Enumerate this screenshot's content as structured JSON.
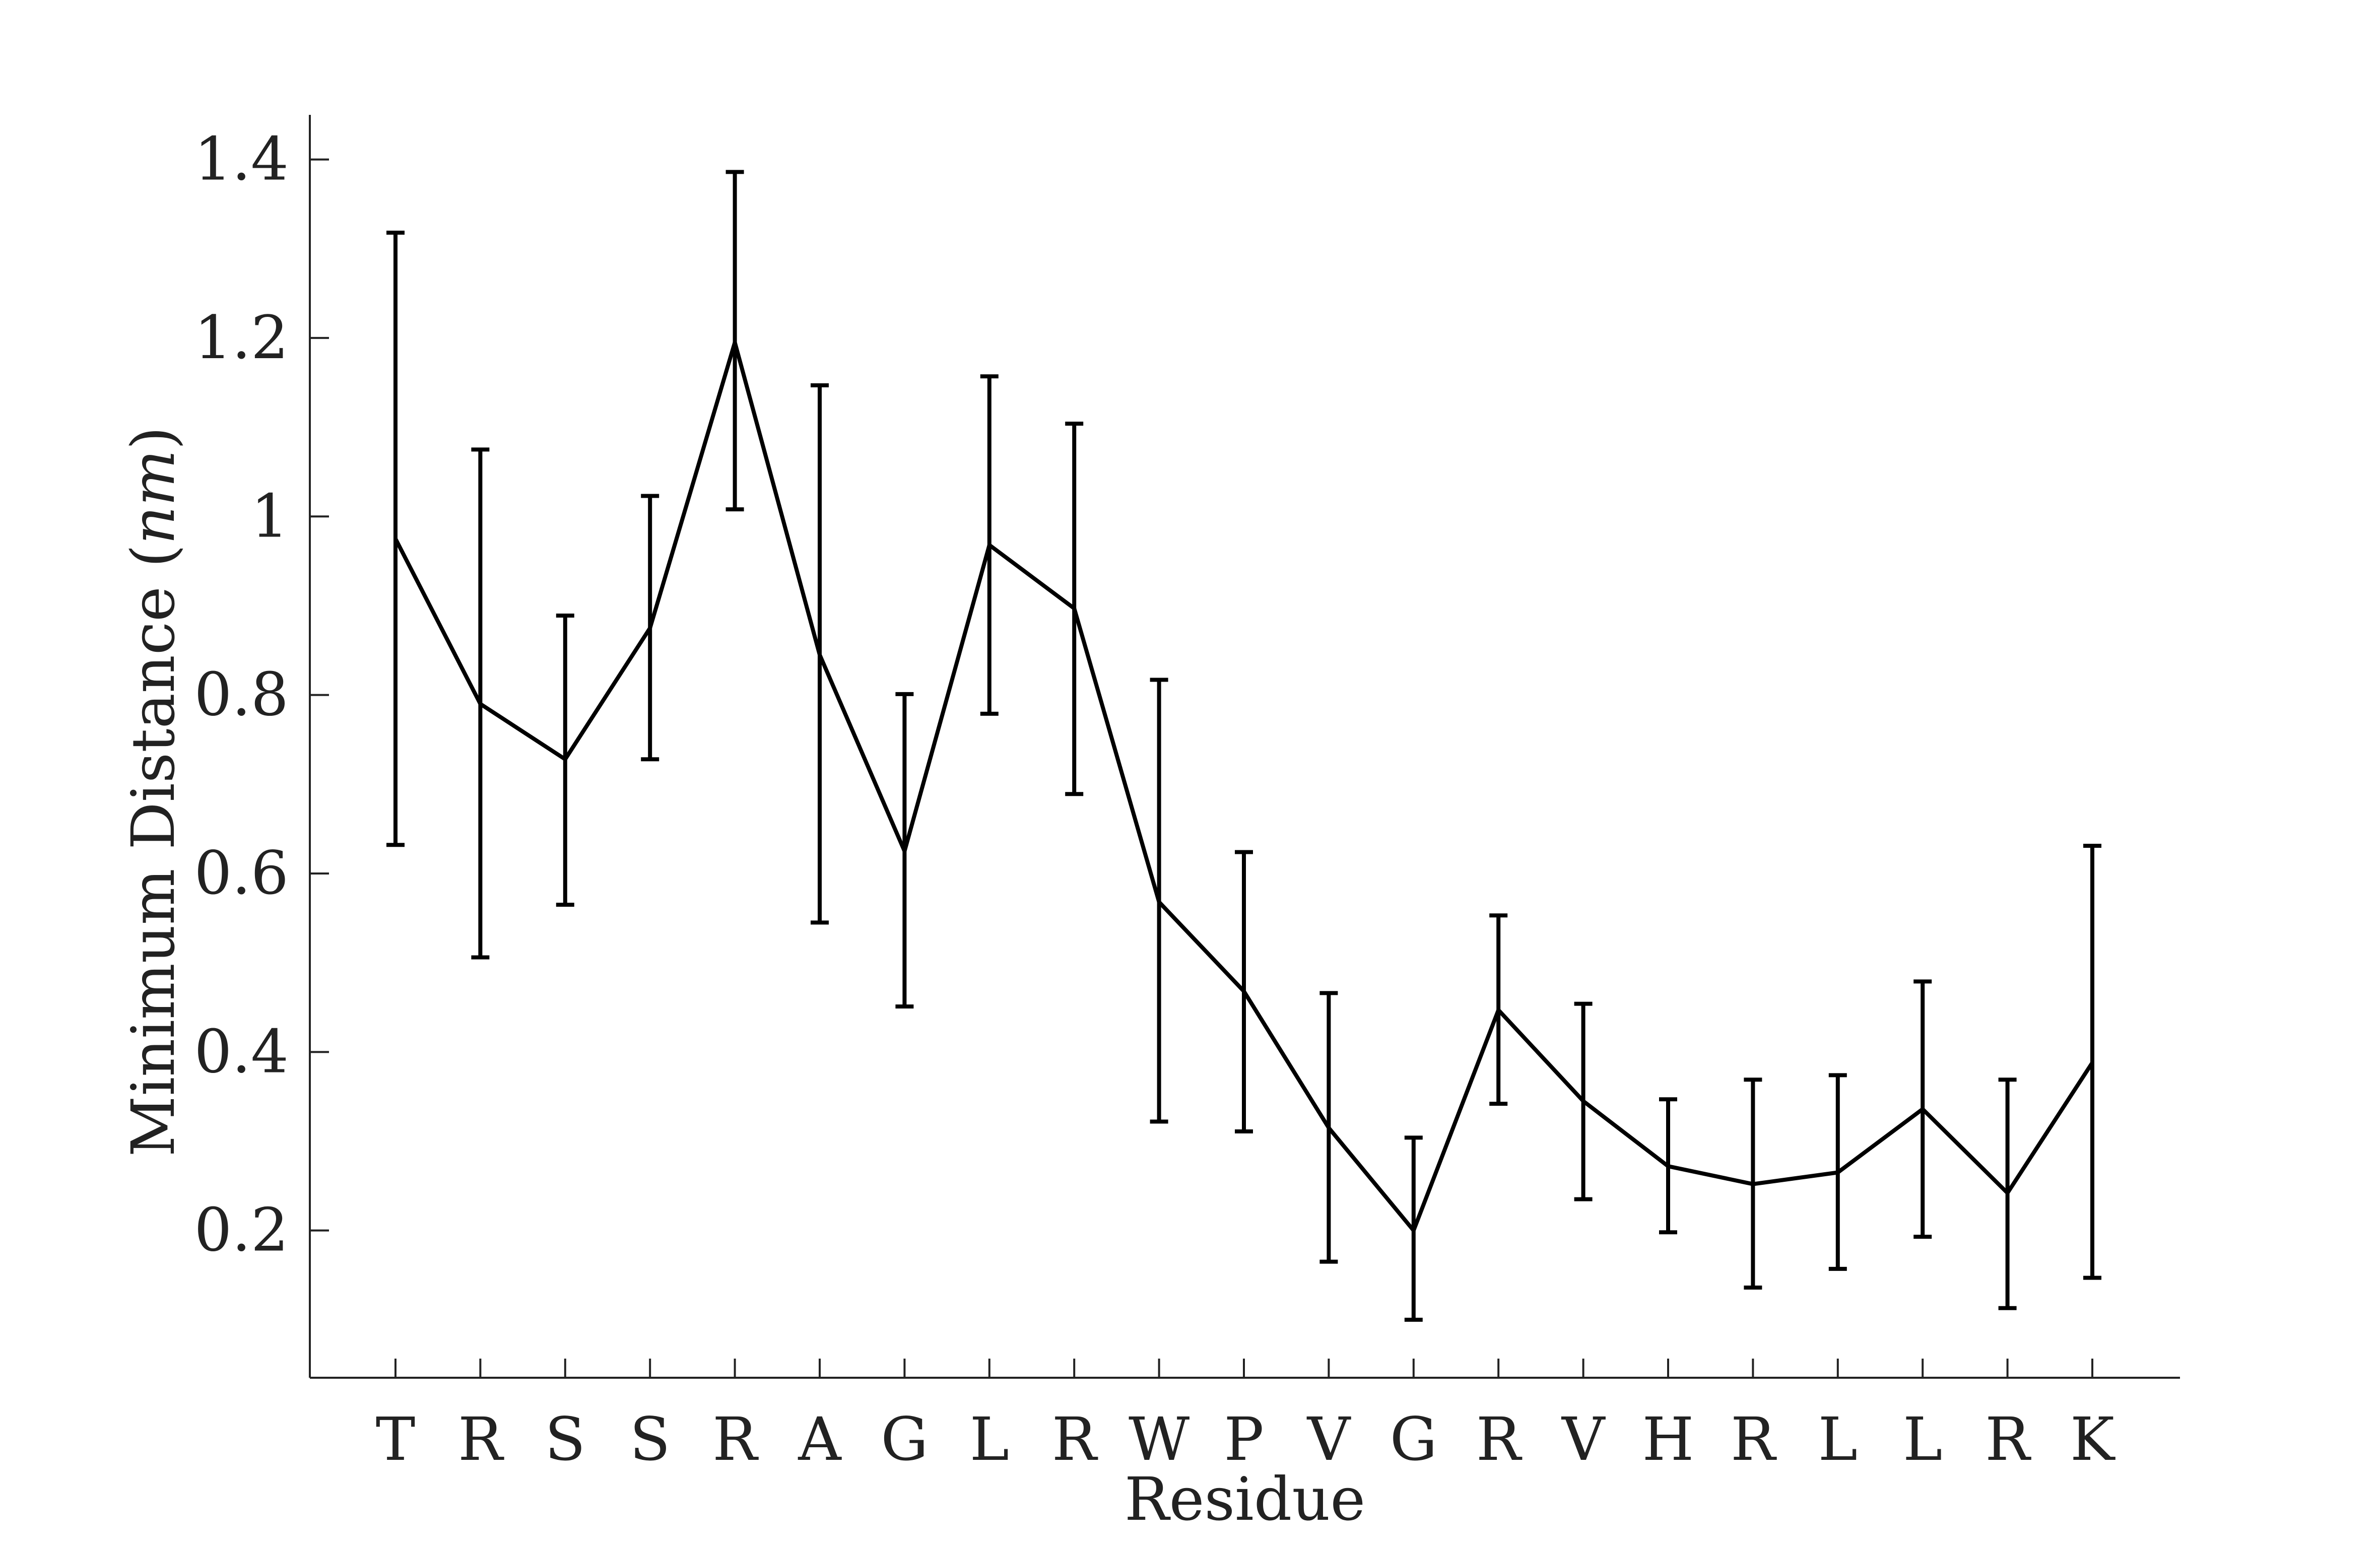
{
  "chart_data": {
    "type": "line",
    "title": "",
    "xlabel": "Residue",
    "ylabel_main": "Minimum Distance (",
    "ylabel_unit": "nm",
    "ylabel_close": ")",
    "categories": [
      "T",
      "R",
      "S",
      "S",
      "R",
      "A",
      "G",
      "L",
      "R",
      "W",
      "P",
      "V",
      "G",
      "R",
      "V",
      "H",
      "R",
      "L",
      "L",
      "R",
      "K"
    ],
    "ylim": [
      0.035,
      1.45
    ],
    "yticks": [
      0.2,
      0.4,
      0.6,
      0.8,
      1,
      1.2,
      1.4
    ],
    "ytick_labels": [
      "0.2",
      "0.4",
      "0.6",
      "0.8",
      "1",
      "1.2",
      "1.4"
    ],
    "series": [
      {
        "values": [
          0.975,
          0.79,
          0.728,
          0.875,
          1.195,
          0.845,
          0.625,
          0.968,
          0.897,
          0.568,
          0.468,
          0.315,
          0.2,
          0.447,
          0.345,
          0.272,
          0.252,
          0.265,
          0.336,
          0.242,
          0.388
        ],
        "err_low": [
          0.632,
          0.506,
          0.565,
          0.728,
          1.008,
          0.545,
          0.451,
          0.779,
          0.689,
          0.322,
          0.311,
          0.165,
          0.1,
          0.342,
          0.235,
          0.198,
          0.136,
          0.157,
          0.193,
          0.113,
          0.147
        ],
        "err_high": [
          1.318,
          1.075,
          0.889,
          1.023,
          1.386,
          1.147,
          0.801,
          1.157,
          1.104,
          0.817,
          0.624,
          0.466,
          0.304,
          0.553,
          0.454,
          0.347,
          0.369,
          0.374,
          0.479,
          0.369,
          0.631
        ]
      }
    ],
    "grid": false,
    "legend": "none",
    "color": "#000000"
  }
}
